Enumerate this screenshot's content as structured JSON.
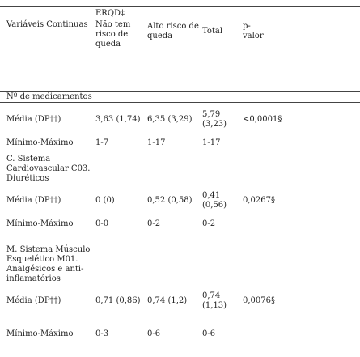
{
  "header": {
    "variable": "Variáveis Continuas",
    "group": "ERQD‡",
    "columns": [
      "Não tem risco de queda",
      "Alto risco de queda",
      "Total",
      "p-valor"
    ]
  },
  "sections": [
    {
      "title": "Nº de medicamentos",
      "rows": [
        {
          "label": "Média (DP††)",
          "cells": [
            "3,63 (1,74)",
            "6,35 (3,29)",
            "5,79 (3,23)",
            "<0,0001§"
          ]
        },
        {
          "label": "Mínimo-Máximo",
          "cells": [
            "1-7",
            "1-17",
            "1-17"
          ]
        }
      ]
    },
    {
      "title": "C. Sistema Cardiovascular C03. Diuréticos",
      "rows": [
        {
          "label": "Média (DP††)",
          "cells": [
            "0 (0)",
            "0,52 (0,58)",
            "0,41 (0,56)",
            "0,0267§"
          ]
        },
        {
          "label": "Mínimo-Máximo",
          "cells": [
            "0-0",
            "0-2",
            "0-2"
          ]
        }
      ]
    },
    {
      "title": "M. Sistema Músculo Esquelético M01. Analgésicos e anti-inflamatórios",
      "rows": [
        {
          "label": "Média (DP††)",
          "cells": [
            "0,71 (0,86)",
            "0,74 (1,2)",
            "0,74 (1,13)",
            "0,0076§"
          ]
        },
        {
          "label": "Mínimo-Máximo",
          "cells": [
            "0-3",
            "0-6",
            "0-6"
          ]
        }
      ]
    }
  ]
}
